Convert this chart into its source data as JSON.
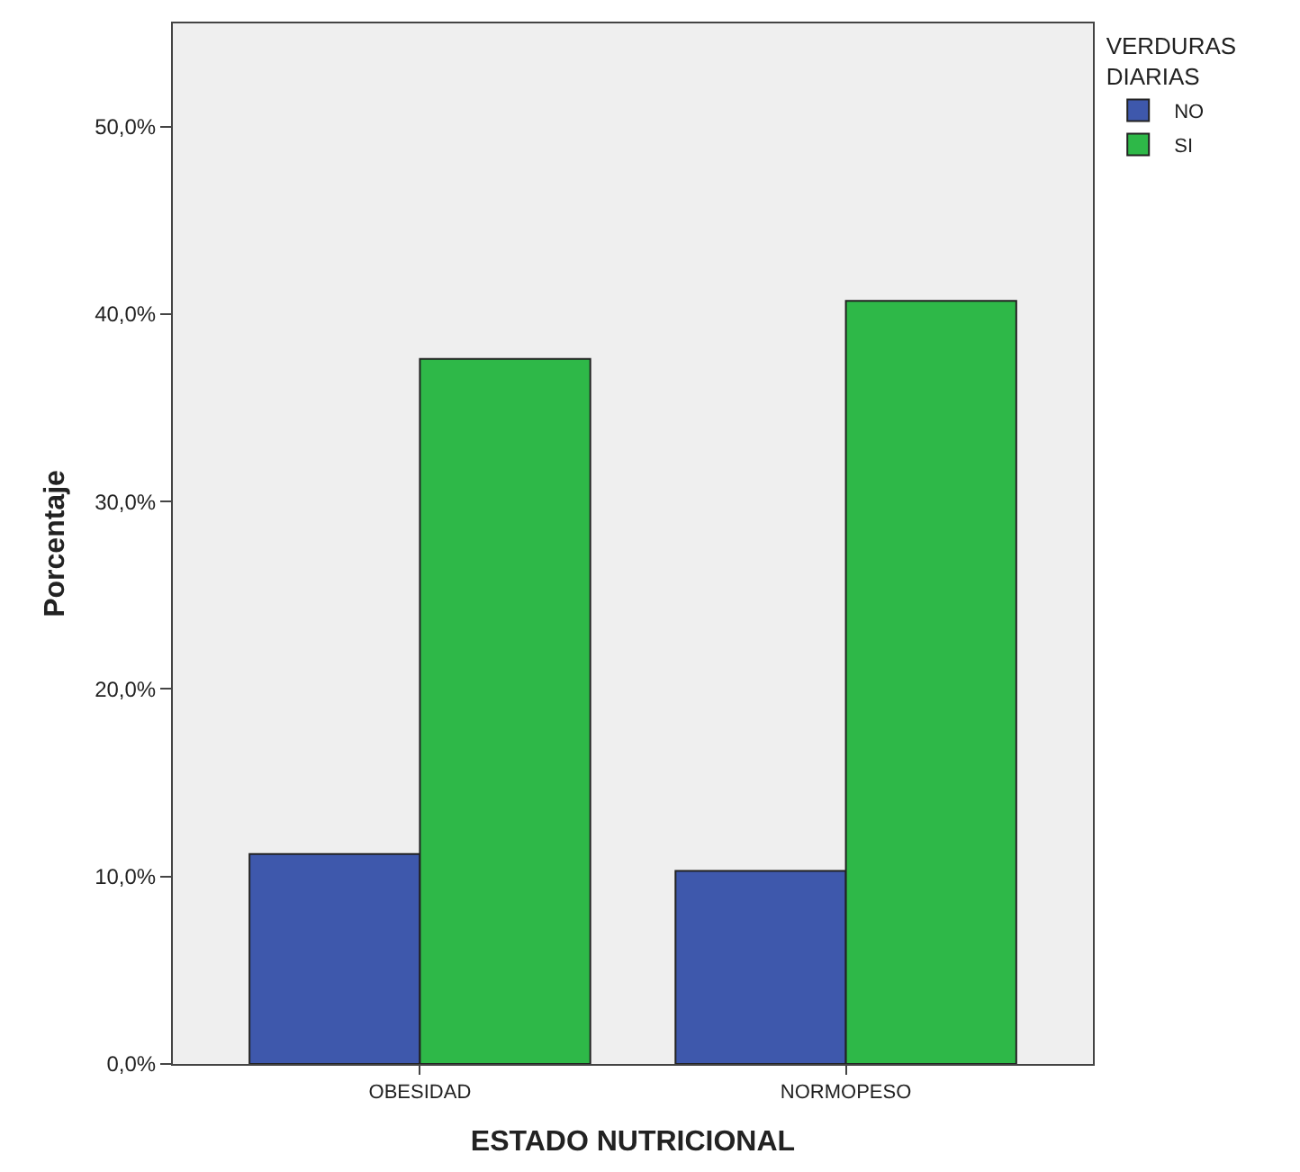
{
  "chart_data": {
    "type": "bar",
    "xlabel": "ESTADO NUTRICIONAL",
    "ylabel": "Porcentaje",
    "legend_title": "VERDURAS DIARIAS",
    "categories": [
      "OBESIDAD",
      "NORMOPESO"
    ],
    "series": [
      {
        "name": "NO",
        "color": "#3e58ac",
        "values": [
          11.2,
          10.3
        ]
      },
      {
        "name": "SI",
        "color": "#2eb848",
        "values": [
          37.6,
          40.7
        ]
      }
    ],
    "ylim": [
      0,
      55.5
    ],
    "yticks": [
      {
        "value": 0,
        "label": "0,0%"
      },
      {
        "value": 10,
        "label": "10,0%"
      },
      {
        "value": 20,
        "label": "20,0%"
      },
      {
        "value": 30,
        "label": "30,0%"
      },
      {
        "value": 40,
        "label": "40,0%"
      },
      {
        "value": 50,
        "label": "50,0%"
      }
    ],
    "grid": false,
    "legend": "top right"
  }
}
